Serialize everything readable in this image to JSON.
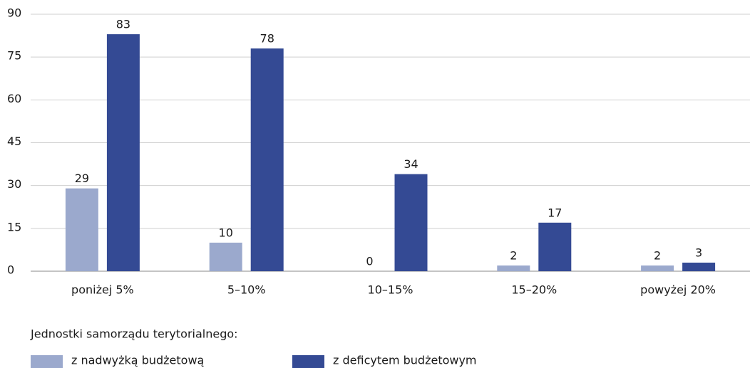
{
  "chart_data": {
    "type": "bar",
    "categories": [
      "poniżej 5%",
      "5–10%",
      "10–15%",
      "15–20%",
      "powyżej 20%"
    ],
    "series": [
      {
        "name": "z nadwyżką budżetową",
        "color": "#9ba9cd",
        "values": [
          29,
          10,
          0,
          2,
          2
        ]
      },
      {
        "name": "z deficytem budżetowym",
        "color": "#344a94",
        "values": [
          83,
          78,
          34,
          17,
          3
        ]
      }
    ],
    "ylim": [
      0,
      90
    ],
    "yticks": [
      0,
      15,
      30,
      45,
      60,
      75,
      90
    ],
    "grid": true,
    "legend_title": "Jednostki samorządu terytorialnego:",
    "legend_position": "bottom-left"
  }
}
